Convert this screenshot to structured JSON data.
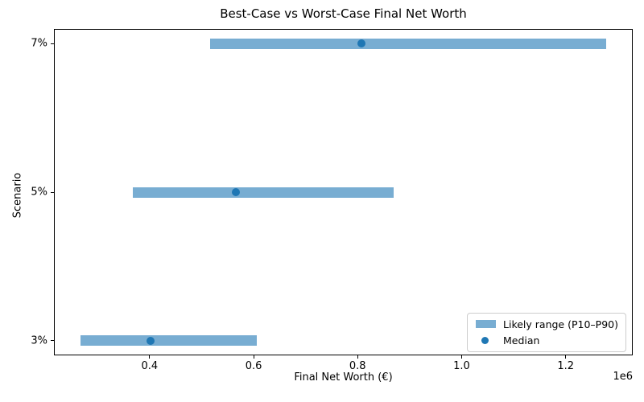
{
  "chart_data": {
    "type": "bar",
    "orientation": "horizontal",
    "title": "Best-Case vs Worst-Case Final Net Worth",
    "xlabel": "Final Net Worth (€)",
    "ylabel": "Scenario",
    "categories": [
      "3%",
      "5%",
      "7%"
    ],
    "series": [
      {
        "name": "Likely range (P10–P90)",
        "type": "range_bar",
        "p10": [
          267000,
          368000,
          517000
        ],
        "p90": [
          606000,
          869000,
          1278000
        ]
      },
      {
        "name": "Median",
        "type": "scatter",
        "values": [
          402000,
          566000,
          808000
        ]
      }
    ],
    "xlim": [
      216000,
      1329000
    ],
    "x_ticks": [
      400000,
      600000,
      800000,
      1000000,
      1200000
    ],
    "x_tick_labels": [
      "0.4",
      "0.6",
      "0.8",
      "1.0",
      "1.2"
    ],
    "x_offset_label": "1e6",
    "grid": false,
    "legend_position": "lower right",
    "colors": {
      "range_bar": "#78ADD2",
      "median_dot": "#1F77B4",
      "frame": "#000000"
    }
  }
}
